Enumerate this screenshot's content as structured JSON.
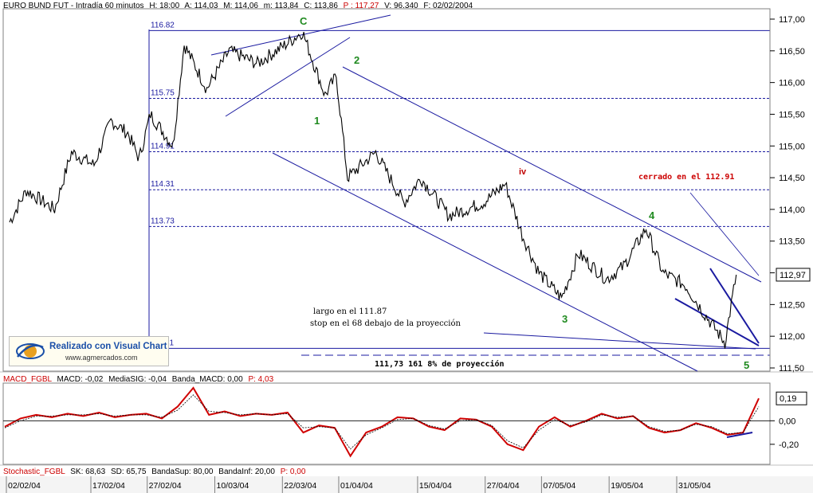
{
  "price_header": {
    "title": "EURO BUND FUT - Intradía 60 minutos",
    "hour": "H: 18:00",
    "open": "A: 114,03",
    "high": "M: 114,06",
    "low": "m: 113,84",
    "close": "C: 113,86",
    "p": "P : 117,27",
    "volume": "V: 96.340",
    "date": "F: 02/02/2004"
  },
  "macd_header": {
    "name": "MACD_FGBL",
    "macd": "MACD: -0,02",
    "signal": "MediaSIG: -0,04",
    "band": "Banda_MACD: 0,00",
    "p": "P: 4,03"
  },
  "stoch_header": {
    "name": "Stochastic_FGBL",
    "sk": "SK: 68,63",
    "sd": "SD: 65,75",
    "sup": "BandaSup: 80,00",
    "inf": "BandaInf: 20,00",
    "p": "P: 0,00"
  },
  "logo": {
    "title": "Realizado con Visual Chart",
    "url": "www.agmercados.com"
  },
  "colors": {
    "price": "#000000",
    "lines": "#1a1aa0",
    "macd": "#d00000",
    "wave": "#1f8a1f",
    "note": "#cc0000"
  },
  "annotations": {
    "waves": {
      "C": "C",
      "w1": "1",
      "w2": "2",
      "w3": "3",
      "w4": "4",
      "w5": "5",
      "iv": "iv"
    },
    "entry_line1": "largo en el 111.87",
    "entry_line2": "stop en el 68 debajo de la proyección",
    "projection": "111,73   161 8% de proyección",
    "closed_note": "cerrado en el 112.91"
  },
  "chart_data": [
    {
      "type": "line",
      "panel": "price",
      "yaxis_ticks": [
        "117,00",
        "116,50",
        "116,00",
        "115,50",
        "115,00",
        "114,50",
        "114,00",
        "113,50",
        "113,00",
        "112,50",
        "112,00",
        "111,50"
      ],
      "ylim": [
        111.5,
        117.0
      ],
      "last_value": "112,97",
      "x_dates": [
        "02/02/04",
        "17/02/04",
        "27/02/04",
        "10/03/04",
        "22/03/04",
        "01/04/04",
        "15/04/04",
        "27/04/04",
        "07/05/04",
        "19/05/04",
        "31/05/04"
      ],
      "levels": [
        {
          "label": "116.82",
          "value": 116.82
        },
        {
          "label": "115.75",
          "value": 115.75
        },
        {
          "label": "114.91",
          "value": 114.91
        },
        {
          "label": "114.31",
          "value": 114.31
        },
        {
          "label": "113.73",
          "value": 113.73
        },
        {
          "label": "111.81",
          "value": 111.81
        }
      ],
      "anchors": [
        {
          "date": "02/02/04",
          "y": 113.8
        },
        {
          "date": "05/02/04",
          "y": 114.3
        },
        {
          "date": "10/02/04",
          "y": 114.0
        },
        {
          "date": "13/02/04",
          "y": 114.9
        },
        {
          "date": "17/02/04",
          "y": 114.7
        },
        {
          "date": "20/02/04",
          "y": 115.4
        },
        {
          "date": "23/02/04",
          "y": 115.2
        },
        {
          "date": "25/02/04",
          "y": 114.8
        },
        {
          "date": "27/02/04",
          "y": 115.5
        },
        {
          "date": "02/03/04",
          "y": 115.0
        },
        {
          "date": "04/03/04",
          "y": 116.6
        },
        {
          "date": "08/03/04",
          "y": 115.9
        },
        {
          "date": "12/03/04",
          "y": 116.5
        },
        {
          "date": "17/03/04",
          "y": 116.3
        },
        {
          "date": "22/03/04",
          "y": 116.6
        },
        {
          "date": "25/03/04",
          "y": 116.8
        },
        {
          "date": "29/03/04",
          "y": 115.8
        },
        {
          "date": "31/03/04",
          "y": 116.1
        },
        {
          "date": "02/04/04",
          "y": 114.5
        },
        {
          "date": "07/04/04",
          "y": 114.9
        },
        {
          "date": "12/04/04",
          "y": 114.1
        },
        {
          "date": "15/04/04",
          "y": 114.5
        },
        {
          "date": "20/04/04",
          "y": 113.9
        },
        {
          "date": "26/04/04",
          "y": 114.1
        },
        {
          "date": "30/04/04",
          "y": 114.4
        },
        {
          "date": "03/05/04",
          "y": 113.6
        },
        {
          "date": "06/05/04",
          "y": 113.0
        },
        {
          "date": "10/05/04",
          "y": 112.6
        },
        {
          "date": "13/05/04",
          "y": 113.3
        },
        {
          "date": "18/05/04",
          "y": 112.9
        },
        {
          "date": "21/05/04",
          "y": 113.1
        },
        {
          "date": "25/05/04",
          "y": 113.7
        },
        {
          "date": "28/05/04",
          "y": 113.0
        },
        {
          "date": "01/06/04",
          "y": 112.8
        },
        {
          "date": "04/06/04",
          "y": 112.4
        },
        {
          "date": "08/06/04",
          "y": 111.9
        },
        {
          "date": "10/06/04",
          "y": 112.97
        }
      ]
    },
    {
      "type": "line",
      "panel": "macd",
      "yaxis_ticks": [
        "0,00",
        "-0,20"
      ],
      "ylim": [
        -0.35,
        0.3
      ],
      "last_value": "0,19",
      "series": [
        {
          "name": "MACD",
          "values": [
            -0.05,
            0.02,
            0.05,
            0.03,
            0.06,
            0.04,
            0.07,
            0.03,
            0.05,
            0.06,
            0.02,
            0.12,
            0.28,
            0.05,
            0.08,
            0.04,
            0.06,
            0.05,
            0.07,
            -0.1,
            -0.04,
            -0.06,
            -0.3,
            -0.1,
            -0.05,
            0.03,
            0.02,
            -0.05,
            -0.08,
            0.02,
            0.01,
            -0.05,
            -0.2,
            -0.25,
            -0.05,
            0.03,
            -0.05,
            0.0,
            0.06,
            0.02,
            0.04,
            -0.06,
            -0.1,
            -0.08,
            -0.02,
            -0.06,
            -0.12,
            -0.1,
            0.19
          ]
        },
        {
          "name": "MediaSIG",
          "values": [
            -0.06,
            0.0,
            0.04,
            0.04,
            0.05,
            0.05,
            0.06,
            0.04,
            0.05,
            0.05,
            0.03,
            0.09,
            0.22,
            0.08,
            0.07,
            0.05,
            0.06,
            0.05,
            0.06,
            -0.06,
            -0.05,
            -0.06,
            -0.24,
            -0.12,
            -0.06,
            0.01,
            0.02,
            -0.04,
            -0.07,
            0.0,
            0.01,
            -0.04,
            -0.17,
            -0.23,
            -0.08,
            0.01,
            -0.04,
            -0.01,
            0.05,
            0.03,
            0.04,
            -0.05,
            -0.09,
            -0.08,
            -0.03,
            -0.05,
            -0.11,
            -0.1,
            0.12
          ]
        }
      ]
    }
  ]
}
